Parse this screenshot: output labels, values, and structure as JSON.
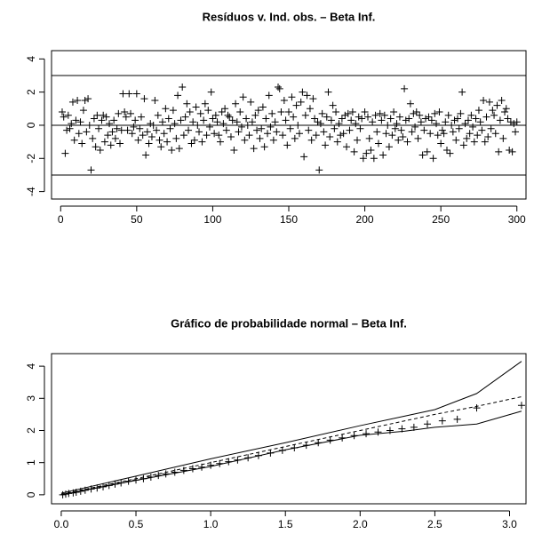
{
  "chart_data": [
    {
      "type": "scatter",
      "title": "Resíduos v. Ind. obs. – Beta Inf.",
      "x": [
        1,
        2,
        3,
        4,
        5,
        6,
        7,
        8,
        9,
        10,
        11,
        12,
        13,
        14,
        15,
        16,
        17,
        18,
        19,
        20,
        21,
        22,
        23,
        24,
        25,
        26,
        27,
        28,
        29,
        30,
        31,
        32,
        33,
        34,
        35,
        36,
        37,
        38,
        39,
        40,
        41,
        42,
        43,
        44,
        45,
        46,
        47,
        48,
        49,
        50,
        51,
        52,
        53,
        54,
        55,
        56,
        57,
        58,
        59,
        60,
        61,
        62,
        63,
        64,
        65,
        66,
        67,
        68,
        69,
        70,
        71,
        72,
        73,
        74,
        75,
        76,
        77,
        78,
        79,
        80,
        81,
        82,
        83,
        84,
        85,
        86,
        87,
        88,
        89,
        90,
        91,
        92,
        93,
        94,
        95,
        96,
        97,
        98,
        99,
        100,
        101,
        102,
        103,
        104,
        105,
        106,
        107,
        108,
        109,
        110,
        111,
        112,
        113,
        114,
        115,
        116,
        117,
        118,
        119,
        120,
        121,
        122,
        123,
        124,
        125,
        126,
        127,
        128,
        129,
        130,
        131,
        132,
        133,
        134,
        135,
        136,
        137,
        138,
        139,
        140,
        141,
        142,
        143,
        144,
        145,
        146,
        147,
        148,
        149,
        150,
        151,
        152,
        153,
        154,
        155,
        156,
        157,
        158,
        159,
        160,
        161,
        162,
        163,
        164,
        165,
        166,
        167,
        168,
        169,
        170,
        171,
        172,
        173,
        174,
        175,
        176,
        177,
        178,
        179,
        180,
        181,
        182,
        183,
        184,
        185,
        186,
        187,
        188,
        189,
        190,
        191,
        192,
        193,
        194,
        195,
        196,
        197,
        198,
        199,
        200,
        201,
        202,
        203,
        204,
        205,
        206,
        207,
        208,
        209,
        210,
        211,
        212,
        213,
        214,
        215,
        216,
        217,
        218,
        219,
        220,
        221,
        222,
        223,
        224,
        225,
        226,
        227,
        228,
        229,
        230,
        231,
        232,
        233,
        234,
        235,
        236,
        237,
        238,
        239,
        240,
        241,
        242,
        243,
        244,
        245,
        246,
        247,
        248,
        249,
        250,
        251,
        252,
        253,
        254,
        255,
        256,
        257,
        258,
        259,
        260,
        261,
        262,
        263,
        264,
        265,
        266,
        267,
        268,
        269,
        270,
        271,
        272,
        273,
        274,
        275,
        276,
        277,
        278,
        279,
        280,
        281,
        282,
        283,
        284,
        285,
        286,
        287,
        288,
        289,
        290,
        291,
        292,
        293,
        294,
        295,
        296,
        297,
        298,
        299,
        300
      ],
      "values": [
        0.8,
        0.5,
        -1.7,
        -0.3,
        0.6,
        -0.2,
        0.1,
        1.4,
        -0.9,
        0.3,
        1.5,
        -0.5,
        0.2,
        -1.1,
        0.9,
        1.5,
        -0.4,
        1.6,
        0.0,
        -2.7,
        -0.8,
        0.4,
        -1.3,
        0.6,
        -0.2,
        -1.5,
        0.3,
        0.6,
        -1.0,
        0.5,
        -0.6,
        0.1,
        -1.2,
        -0.4,
        0.3,
        -0.8,
        -0.2,
        0.7,
        -1.1,
        -0.3,
        1.9,
        0.8,
        0.5,
        -0.3,
        1.9,
        0.7,
        -0.5,
        -0.1,
        0.3,
        1.9,
        -0.9,
        -0.2,
        0.5,
        -0.6,
        1.6,
        -1.8,
        -0.4,
        -1.1,
        0.1,
        -0.7,
        0.0,
        1.5,
        -0.3,
        0.6,
        -0.9,
        -1.3,
        0.2,
        -0.5,
        1.0,
        -1.0,
        0.4,
        -0.2,
        -1.5,
        0.9,
        0.1,
        -0.8,
        1.8,
        -1.4,
        0.3,
        2.3,
        -0.6,
        0.5,
        1.3,
        -0.3,
        0.8,
        -1.1,
        0.2,
        -0.9,
        1.1,
        0.0,
        -0.4,
        0.7,
        -1.0,
        0.3,
        1.3,
        -0.6,
        0.9,
        -0.1,
        2.0,
        0.4,
        -0.5,
        0.6,
        0.2,
        -0.6,
        -1.0,
        0.8,
        0.1,
        1.0,
        -0.3,
        0.6,
        0.5,
        -0.7,
        0.3,
        -1.5,
        1.3,
        0.2,
        -0.4,
        0.8,
        -0.1,
        1.7,
        -0.9,
        0.4,
        0.0,
        -0.6,
        1.4,
        0.2,
        -1.4,
        0.6,
        -0.3,
        0.9,
        -0.8,
        -0.2,
        1.1,
        -1.3,
        0.4,
        -0.5,
        1.8,
        -0.1,
        0.7,
        -0.9,
        0.2,
        -0.4,
        2.3,
        2.2,
        0.8,
        -0.6,
        1.5,
        0.3,
        -1.2,
        0.8,
        -0.2,
        1.7,
        0.5,
        -0.8,
        1.2,
        0.0,
        -0.5,
        1.4,
        2.0,
        -1.9,
        0.6,
        1.8,
        -0.3,
        1.0,
        -0.9,
        1.6,
        0.4,
        -0.6,
        0.2,
        -2.7,
        0.1,
        0.7,
        -0.4,
        -1.2,
        0.5,
        2.0,
        -0.7,
        0.3,
        1.2,
        -0.2,
        0.8,
        -1.0,
        0.1,
        -0.6,
        0.4,
        -0.5,
        0.6,
        -1.3,
        0.7,
        -0.3,
        0.3,
        0.8,
        -1.6,
        0.1,
        -0.9,
        0.5,
        -0.2,
        0.4,
        -2.0,
        0.8,
        -1.7,
        0.5,
        -0.8,
        -1.5,
        0.2,
        -2.0,
        0.6,
        -0.4,
        -1.1,
        0.7,
        0.3,
        -1.8,
        0.6,
        -0.5,
        0.0,
        -1.3,
        0.4,
        -0.6,
        0.8,
        -0.2,
        0.1,
        -0.9,
        0.5,
        -0.3,
        -0.7,
        2.2,
        0.3,
        -1.0,
        0.4,
        1.3,
        -0.4,
        0.7,
        -0.1,
        0.8,
        -0.8,
        0.6,
        0.2,
        -1.8,
        -0.3,
        0.4,
        -1.6,
        0.5,
        -0.5,
        0.3,
        -2.0,
        0.7,
        0.1,
        -0.6,
        0.8,
        -1.1,
        -0.3,
        -0.5,
        0.2,
        -1.5,
        0.6,
        -1.7,
        0.0,
        -0.4,
        0.3,
        -0.9,
        0.4,
        -0.2,
        0.7,
        2.0,
        -1.2,
        0.1,
        -0.8,
        0.3,
        -0.5,
        0.6,
        -0.1,
        -1.0,
        0.4,
        -0.6,
        0.9,
        0.2,
        -0.3,
        1.5,
        -1.0,
        0.5,
        -0.7,
        1.4,
        -0.2,
        0.9,
        0.6,
        -0.5,
        1.2,
        -1.6,
        0.3,
        1.5,
        -0.8,
        0.8,
        1.0,
        0.4,
        -1.5,
        0.2,
        -1.6,
        0.1,
        -0.4,
        0.2
      ],
      "hlines": [
        -3,
        0,
        3
      ],
      "xlim": [
        -6,
        306
      ],
      "ylim": [
        -4.45,
        4.5
      ],
      "xticks": [
        0,
        50,
        100,
        150,
        200,
        250,
        300
      ],
      "yticks": [
        -4,
        -2,
        0,
        2,
        4
      ],
      "color": "#000000"
    },
    {
      "type": "envelope",
      "title": "Gráfico de probabilidade normal – Beta Inf.",
      "x": [
        0.01,
        0.03,
        0.05,
        0.08,
        0.1,
        0.13,
        0.16,
        0.2,
        0.24,
        0.28,
        0.32,
        0.36,
        0.4,
        0.45,
        0.5,
        0.55,
        0.6,
        0.65,
        0.7,
        0.76,
        0.82,
        0.88,
        0.94,
        1.0,
        1.06,
        1.12,
        1.18,
        1.25,
        1.32,
        1.4,
        1.48,
        1.56,
        1.64,
        1.72,
        1.8,
        1.88,
        1.96,
        2.04,
        2.12,
        2.2,
        2.28,
        2.36,
        2.45,
        2.55,
        2.65,
        2.78,
        3.08
      ],
      "values": [
        0.0,
        0.02,
        0.04,
        0.06,
        0.08,
        0.11,
        0.14,
        0.18,
        0.21,
        0.25,
        0.29,
        0.33,
        0.37,
        0.42,
        0.46,
        0.5,
        0.55,
        0.6,
        0.65,
        0.7,
        0.76,
        0.81,
        0.86,
        0.92,
        0.97,
        1.03,
        1.08,
        1.15,
        1.22,
        1.3,
        1.38,
        1.46,
        1.54,
        1.62,
        1.7,
        1.77,
        1.84,
        1.9,
        1.95,
        2.0,
        2.05,
        2.1,
        2.2,
        2.3,
        2.35,
        2.7,
        2.78
      ],
      "envelope": {
        "x": [
          0,
          0.5,
          1.0,
          1.5,
          2.0,
          2.3,
          2.5,
          2.78,
          3.08
        ],
        "upper": [
          0.05,
          0.58,
          1.12,
          1.62,
          2.15,
          2.45,
          2.65,
          3.15,
          4.15
        ],
        "mean": [
          0.02,
          0.5,
          1.0,
          1.5,
          2.0,
          2.3,
          2.5,
          2.75,
          3.05
        ],
        "lower": [
          0.0,
          0.45,
          0.88,
          1.4,
          1.85,
          1.98,
          2.1,
          2.2,
          2.6
        ]
      },
      "xlim": [
        -0.065,
        3.11
      ],
      "ylim": [
        -0.28,
        4.39
      ],
      "xticks": [
        {
          "value": 0,
          "label": "0.0"
        },
        0.5,
        {
          "value": 1,
          "label": "1.0"
        },
        1.5,
        {
          "value": 2,
          "label": "2.0"
        },
        2.5,
        {
          "value": 3,
          "label": "3.0"
        }
      ],
      "yticks": [
        0,
        1,
        2,
        3,
        4
      ],
      "color": "#000000"
    }
  ]
}
